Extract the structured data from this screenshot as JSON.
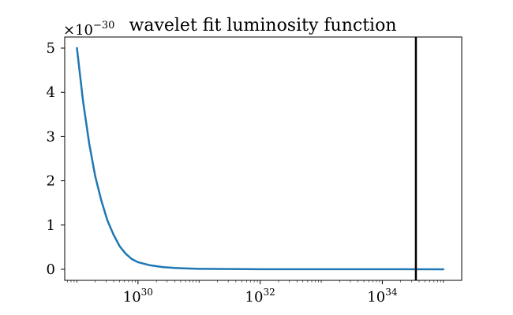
{
  "chart_data": {
    "type": "line",
    "title": "wavelet fit luminosity function",
    "xlabel": "",
    "ylabel": "",
    "xscale": "log",
    "x_log10_range": [
      28.8,
      35.3
    ],
    "ylim": [
      -0.25,
      5.25
    ],
    "y_offset_label": {
      "base": "×10",
      "exponent": "−30"
    },
    "yticks": [
      0,
      1,
      2,
      3,
      4,
      5
    ],
    "yticklabels": [
      "0",
      "1",
      "2",
      "3",
      "4",
      "5"
    ],
    "xticks_log10": [
      30,
      32,
      34
    ],
    "xticklabels": [
      {
        "base": "10",
        "exponent": "30"
      },
      {
        "base": "10",
        "exponent": "32"
      },
      {
        "base": "10",
        "exponent": "34"
      }
    ],
    "series": [
      {
        "color": "#1f77b4",
        "x_log10": [
          29.0,
          29.1,
          29.2,
          29.3,
          29.4,
          29.5,
          29.6,
          29.7,
          29.8,
          29.9,
          30.0,
          30.2,
          30.4,
          30.6,
          30.8,
          31.0,
          31.5,
          32.0,
          33.0,
          34.0,
          35.0
        ],
        "y": [
          5.0,
          3.8,
          2.85,
          2.1,
          1.55,
          1.1,
          0.78,
          0.52,
          0.35,
          0.23,
          0.16,
          0.09,
          0.05,
          0.03,
          0.02,
          0.01,
          0.005,
          0.002,
          0.001,
          0.0005,
          0.0
        ]
      }
    ],
    "vertical_line": {
      "x_log10": 34.55,
      "color": "#000000"
    },
    "grid": false
  }
}
